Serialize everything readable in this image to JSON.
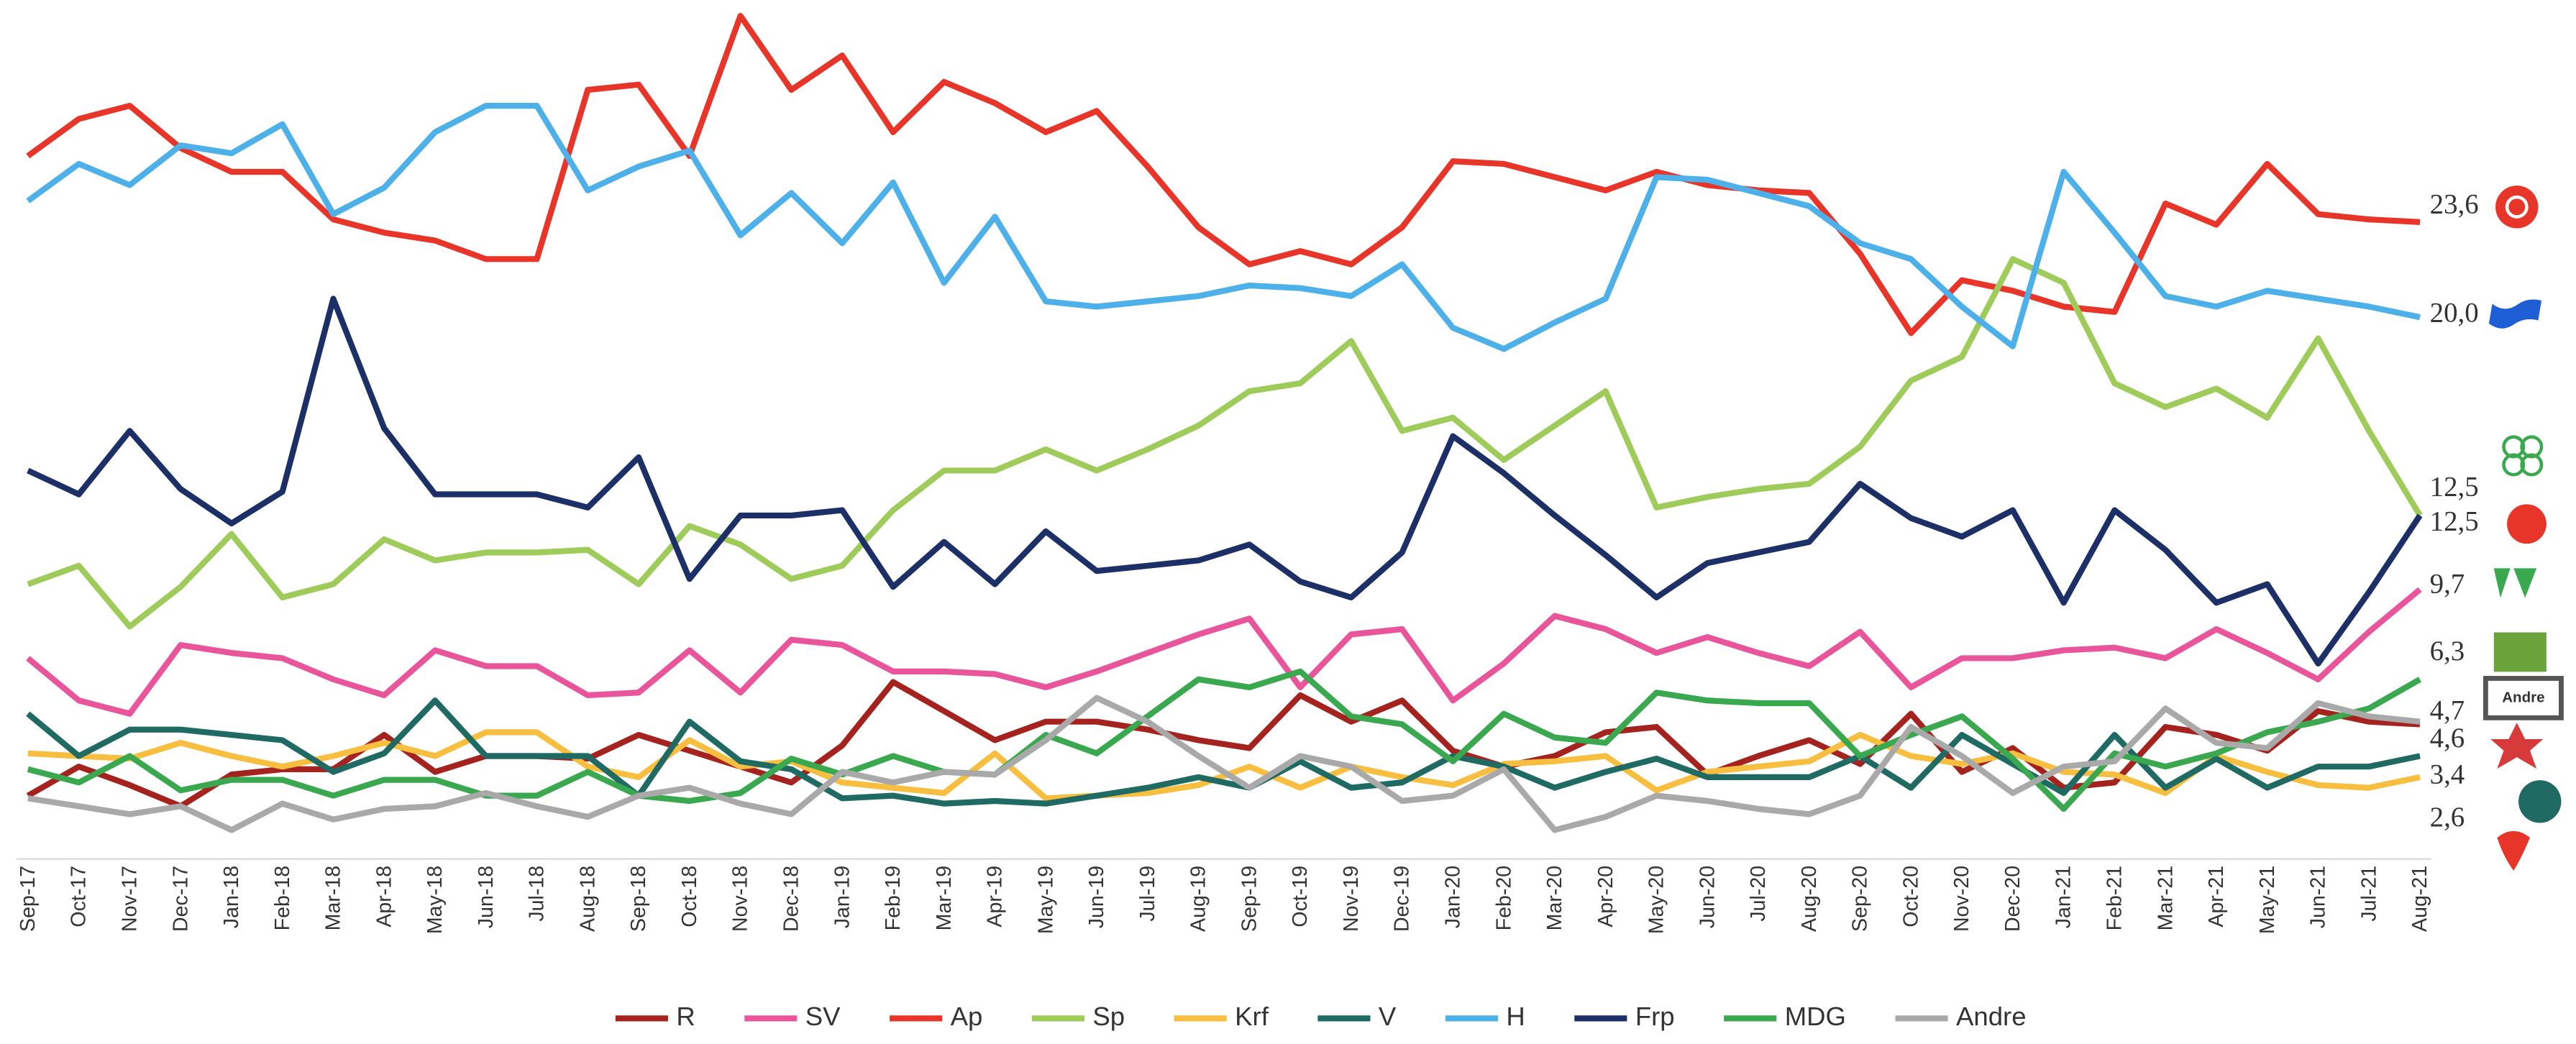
{
  "chart_data": {
    "type": "line",
    "categories": [
      "Sep-17",
      "Oct-17",
      "Nov-17",
      "Dec-17",
      "Jan-18",
      "Feb-18",
      "Mar-18",
      "Apr-18",
      "May-18",
      "Jun-18",
      "Jul-18",
      "Aug-18",
      "Sep-18",
      "Oct-18",
      "Nov-18",
      "Dec-18",
      "Jan-19",
      "Feb-19",
      "Mar-19",
      "Apr-19",
      "May-19",
      "Jun-19",
      "Jul-19",
      "Aug-19",
      "Sep-19",
      "Oct-19",
      "Nov-19",
      "Dec-19",
      "Jan-20",
      "Feb-20",
      "Mar-20",
      "Apr-20",
      "May-20",
      "Jun-20",
      "Jul-20",
      "Aug-20",
      "Sep-20",
      "Oct-20",
      "Nov-20",
      "Dec-20",
      "Jan-21",
      "Feb-21",
      "Mar-21",
      "Apr-21",
      "May-21",
      "Jun-21",
      "Jul-21",
      "Aug-21"
    ],
    "ylim": [
      0,
      32
    ],
    "legend": "bottom",
    "series": [
      {
        "name": "R",
        "color": "#a5231e",
        "values": [
          1.9,
          3.0,
          2.3,
          1.5,
          2.7,
          2.9,
          2.9,
          4.2,
          2.8,
          3.4,
          3.4,
          3.3,
          4.2,
          3.6,
          3.0,
          2.4,
          3.8,
          6.2,
          5.1,
          4.0,
          4.7,
          4.7,
          4.4,
          4.0,
          3.7,
          5.7,
          4.7,
          5.5,
          3.6,
          3.0,
          3.4,
          4.3,
          4.5,
          2.7,
          3.4,
          4.0,
          3.1,
          5.0,
          2.8,
          3.7,
          2.2,
          2.4,
          4.5,
          4.2,
          3.6,
          5.1,
          4.7,
          4.6
        ],
        "value_labels": [
          null,
          null,
          null,
          null,
          null,
          null,
          null,
          null,
          null,
          null,
          null,
          null,
          null,
          null,
          null,
          null,
          null,
          null,
          null,
          null,
          null,
          null,
          null,
          null,
          null,
          null,
          null,
          null,
          null,
          null,
          null,
          null,
          null,
          null,
          null,
          null,
          null,
          null,
          null,
          null,
          null,
          null,
          null,
          null,
          null,
          null,
          null,
          "4,6"
        ]
      },
      {
        "name": "SV",
        "color": "#e8559a",
        "values": [
          7.1,
          5.5,
          5.0,
          7.6,
          7.3,
          7.1,
          6.3,
          5.7,
          7.4,
          6.8,
          6.8,
          5.7,
          5.8,
          7.4,
          5.8,
          7.8,
          7.6,
          6.6,
          6.6,
          6.5,
          6.0,
          6.6,
          7.3,
          8.0,
          8.6,
          6.0,
          8.0,
          8.2,
          5.5,
          6.9,
          8.7,
          8.2,
          7.3,
          7.9,
          7.3,
          6.8,
          8.1,
          6.0,
          7.1,
          7.1,
          7.4,
          7.5,
          7.1,
          8.2,
          7.3,
          6.3,
          8.1,
          9.7
        ],
        "value_labels": [
          null,
          null,
          null,
          null,
          null,
          null,
          null,
          null,
          null,
          null,
          null,
          null,
          null,
          null,
          null,
          null,
          null,
          null,
          null,
          null,
          null,
          null,
          null,
          null,
          null,
          null,
          null,
          null,
          null,
          null,
          null,
          null,
          null,
          null,
          null,
          null,
          null,
          null,
          null,
          null,
          null,
          null,
          null,
          null,
          null,
          null,
          null,
          "9,7"
        ]
      },
      {
        "name": "Ap",
        "color": "#e8352a",
        "values": [
          26.1,
          27.5,
          28.0,
          26.4,
          25.5,
          25.5,
          23.7,
          23.2,
          22.9,
          22.2,
          22.2,
          28.6,
          28.8,
          26.1,
          31.4,
          28.6,
          29.9,
          27.0,
          28.9,
          28.1,
          27.0,
          27.8,
          25.7,
          23.4,
          22.0,
          22.5,
          22.0,
          23.4,
          25.9,
          25.8,
          25.3,
          24.8,
          25.5,
          25.0,
          24.8,
          24.7,
          22.4,
          19.4,
          21.4,
          21.0,
          20.4,
          20.2,
          24.3,
          23.5,
          25.8,
          23.9,
          23.7,
          23.6
        ],
        "value_labels": [
          null,
          null,
          null,
          null,
          null,
          null,
          null,
          null,
          null,
          null,
          null,
          null,
          null,
          null,
          null,
          null,
          null,
          null,
          null,
          null,
          null,
          null,
          null,
          null,
          null,
          null,
          null,
          null,
          null,
          null,
          null,
          null,
          null,
          null,
          null,
          null,
          null,
          null,
          null,
          null,
          null,
          null,
          null,
          null,
          null,
          null,
          null,
          "23,6"
        ]
      },
      {
        "name": "Sp",
        "color": "#9fcb5b",
        "values": [
          9.9,
          10.6,
          8.3,
          9.8,
          11.8,
          9.4,
          9.9,
          11.6,
          10.8,
          11.1,
          11.1,
          11.2,
          9.9,
          12.1,
          11.4,
          10.1,
          10.6,
          12.7,
          14.2,
          14.2,
          15.0,
          14.2,
          15.0,
          15.9,
          17.2,
          17.5,
          19.1,
          15.7,
          16.2,
          14.6,
          15.9,
          17.2,
          12.8,
          13.2,
          13.5,
          13.7,
          15.1,
          17.6,
          18.5,
          22.2,
          21.3,
          17.5,
          16.6,
          17.3,
          16.2,
          19.2,
          15.7,
          12.5
        ],
        "value_labels": [
          null,
          null,
          null,
          null,
          null,
          null,
          null,
          null,
          null,
          null,
          null,
          null,
          null,
          null,
          null,
          null,
          null,
          null,
          null,
          null,
          null,
          null,
          null,
          null,
          null,
          null,
          null,
          null,
          null,
          null,
          null,
          null,
          null,
          null,
          null,
          null,
          null,
          null,
          null,
          null,
          null,
          null,
          null,
          null,
          null,
          null,
          null,
          "12,5"
        ]
      },
      {
        "name": "Krf",
        "color": "#f7be3f",
        "values": [
          3.5,
          3.4,
          3.3,
          3.9,
          3.4,
          3.0,
          3.4,
          3.9,
          3.4,
          4.3,
          4.3,
          3.0,
          2.6,
          4.0,
          3.0,
          3.2,
          2.4,
          2.2,
          2.0,
          3.5,
          1.8,
          1.9,
          2.0,
          2.3,
          3.0,
          2.2,
          3.0,
          2.6,
          2.3,
          3.1,
          3.2,
          3.4,
          2.1,
          2.8,
          3.0,
          3.2,
          4.2,
          3.4,
          3.1,
          3.5,
          2.8,
          2.7,
          2.0,
          3.4,
          2.8,
          2.3,
          2.2,
          2.6
        ],
        "value_labels": [
          null,
          null,
          null,
          null,
          null,
          null,
          null,
          null,
          null,
          null,
          null,
          null,
          null,
          null,
          null,
          null,
          null,
          null,
          null,
          null,
          null,
          null,
          null,
          null,
          null,
          null,
          null,
          null,
          null,
          null,
          null,
          null,
          null,
          null,
          null,
          null,
          null,
          null,
          null,
          null,
          null,
          null,
          null,
          null,
          null,
          null,
          null,
          "2,6"
        ]
      },
      {
        "name": "V",
        "color": "#1f6a62",
        "values": [
          5.0,
          3.4,
          4.4,
          4.4,
          4.2,
          4.0,
          2.8,
          3.5,
          5.5,
          3.4,
          3.4,
          3.4,
          1.9,
          4.7,
          3.2,
          2.9,
          1.8,
          1.9,
          1.6,
          1.7,
          1.6,
          1.9,
          2.2,
          2.6,
          2.2,
          3.2,
          2.2,
          2.4,
          3.4,
          3.0,
          2.2,
          2.8,
          3.3,
          2.6,
          2.6,
          2.6,
          3.4,
          2.2,
          4.2,
          3.1,
          2.0,
          4.2,
          2.2,
          3.3,
          2.2,
          3.0,
          3.0,
          3.4
        ],
        "value_labels": [
          null,
          null,
          null,
          null,
          null,
          null,
          null,
          null,
          null,
          null,
          null,
          null,
          null,
          null,
          null,
          null,
          null,
          null,
          null,
          null,
          null,
          null,
          null,
          null,
          null,
          null,
          null,
          null,
          null,
          null,
          null,
          null,
          null,
          null,
          null,
          null,
          null,
          null,
          null,
          null,
          null,
          null,
          null,
          null,
          null,
          null,
          null,
          "3,4"
        ]
      },
      {
        "name": "H",
        "color": "#4eb0e8",
        "values": [
          24.4,
          25.8,
          25.0,
          26.5,
          26.2,
          27.3,
          23.9,
          24.9,
          27.0,
          28.0,
          28.0,
          24.8,
          25.7,
          26.3,
          23.1,
          24.7,
          22.8,
          25.1,
          21.3,
          23.8,
          20.6,
          20.4,
          20.6,
          20.8,
          21.2,
          21.1,
          20.8,
          22.0,
          19.6,
          18.8,
          19.8,
          20.7,
          25.3,
          25.2,
          24.7,
          24.2,
          22.8,
          22.2,
          20.4,
          18.9,
          25.5,
          23.2,
          20.8,
          20.4,
          21.0,
          20.7,
          20.4,
          20.0
        ],
        "value_labels": [
          null,
          null,
          null,
          null,
          null,
          null,
          null,
          null,
          null,
          null,
          null,
          null,
          null,
          null,
          null,
          null,
          null,
          null,
          null,
          null,
          null,
          null,
          null,
          null,
          null,
          null,
          null,
          null,
          null,
          null,
          null,
          null,
          null,
          null,
          null,
          null,
          null,
          null,
          null,
          null,
          null,
          null,
          null,
          null,
          null,
          null,
          null,
          "20,0"
        ]
      },
      {
        "name": "Frp",
        "color": "#1c2f66",
        "values": [
          14.2,
          13.3,
          15.7,
          13.5,
          12.2,
          13.4,
          20.7,
          15.8,
          13.3,
          13.3,
          13.3,
          12.8,
          14.7,
          10.1,
          12.5,
          12.5,
          12.7,
          9.8,
          11.5,
          9.9,
          11.9,
          10.4,
          10.6,
          10.8,
          11.4,
          10.0,
          9.4,
          11.1,
          15.5,
          14.1,
          12.5,
          11.0,
          9.4,
          10.7,
          11.1,
          11.5,
          13.7,
          12.4,
          11.7,
          12.7,
          9.2,
          12.7,
          11.2,
          9.2,
          9.9,
          6.9,
          9.6,
          12.5
        ],
        "value_labels": [
          null,
          null,
          null,
          null,
          null,
          null,
          null,
          null,
          null,
          null,
          null,
          null,
          null,
          null,
          null,
          null,
          null,
          null,
          null,
          null,
          null,
          null,
          null,
          null,
          null,
          null,
          null,
          null,
          null,
          null,
          null,
          null,
          null,
          null,
          null,
          null,
          null,
          null,
          null,
          null,
          null,
          null,
          null,
          null,
          null,
          null,
          null,
          "12,5"
        ]
      },
      {
        "name": "MDG",
        "color": "#3aa84f",
        "values": [
          2.9,
          2.4,
          3.4,
          2.1,
          2.5,
          2.5,
          1.9,
          2.5,
          2.5,
          1.9,
          1.9,
          2.8,
          1.9,
          1.7,
          2.0,
          3.3,
          2.7,
          3.4,
          2.8,
          2.7,
          4.2,
          3.5,
          4.9,
          6.3,
          6.0,
          6.6,
          4.9,
          4.6,
          3.2,
          5.0,
          4.1,
          3.9,
          5.8,
          5.5,
          5.4,
          5.4,
          3.4,
          4.2,
          4.9,
          3.3,
          1.4,
          3.5,
          3.0,
          3.5,
          4.3,
          4.7,
          5.2,
          6.3
        ],
        "value_labels": [
          null,
          null,
          null,
          null,
          null,
          null,
          null,
          null,
          null,
          null,
          null,
          null,
          null,
          null,
          null,
          null,
          null,
          null,
          null,
          null,
          null,
          null,
          null,
          null,
          null,
          null,
          null,
          null,
          null,
          null,
          null,
          null,
          null,
          null,
          null,
          null,
          null,
          null,
          null,
          null,
          null,
          null,
          null,
          null,
          null,
          null,
          null,
          "6,3"
        ]
      },
      {
        "name": "Andre",
        "color": "#a9a9a9",
        "values": [
          1.8,
          1.5,
          1.2,
          1.5,
          0.6,
          1.6,
          1.0,
          1.4,
          1.5,
          2.0,
          1.5,
          1.1,
          1.9,
          2.2,
          1.6,
          1.2,
          2.8,
          2.4,
          2.8,
          2.7,
          4.0,
          5.6,
          4.7,
          3.4,
          2.2,
          3.4,
          3.0,
          1.7,
          1.9,
          2.9,
          0.6,
          1.1,
          1.9,
          1.7,
          1.4,
          1.2,
          1.9,
          4.5,
          3.4,
          2.0,
          3.0,
          3.2,
          5.2,
          3.9,
          3.7,
          5.4,
          4.9,
          4.7
        ],
        "value_labels": [
          null,
          null,
          null,
          null,
          null,
          null,
          null,
          null,
          null,
          null,
          null,
          null,
          null,
          null,
          null,
          null,
          null,
          null,
          null,
          null,
          null,
          null,
          null,
          null,
          null,
          null,
          null,
          null,
          null,
          null,
          null,
          null,
          null,
          null,
          null,
          null,
          null,
          null,
          null,
          null,
          null,
          null,
          null,
          null,
          null,
          null,
          null,
          "4,7"
        ]
      }
    ]
  }
}
